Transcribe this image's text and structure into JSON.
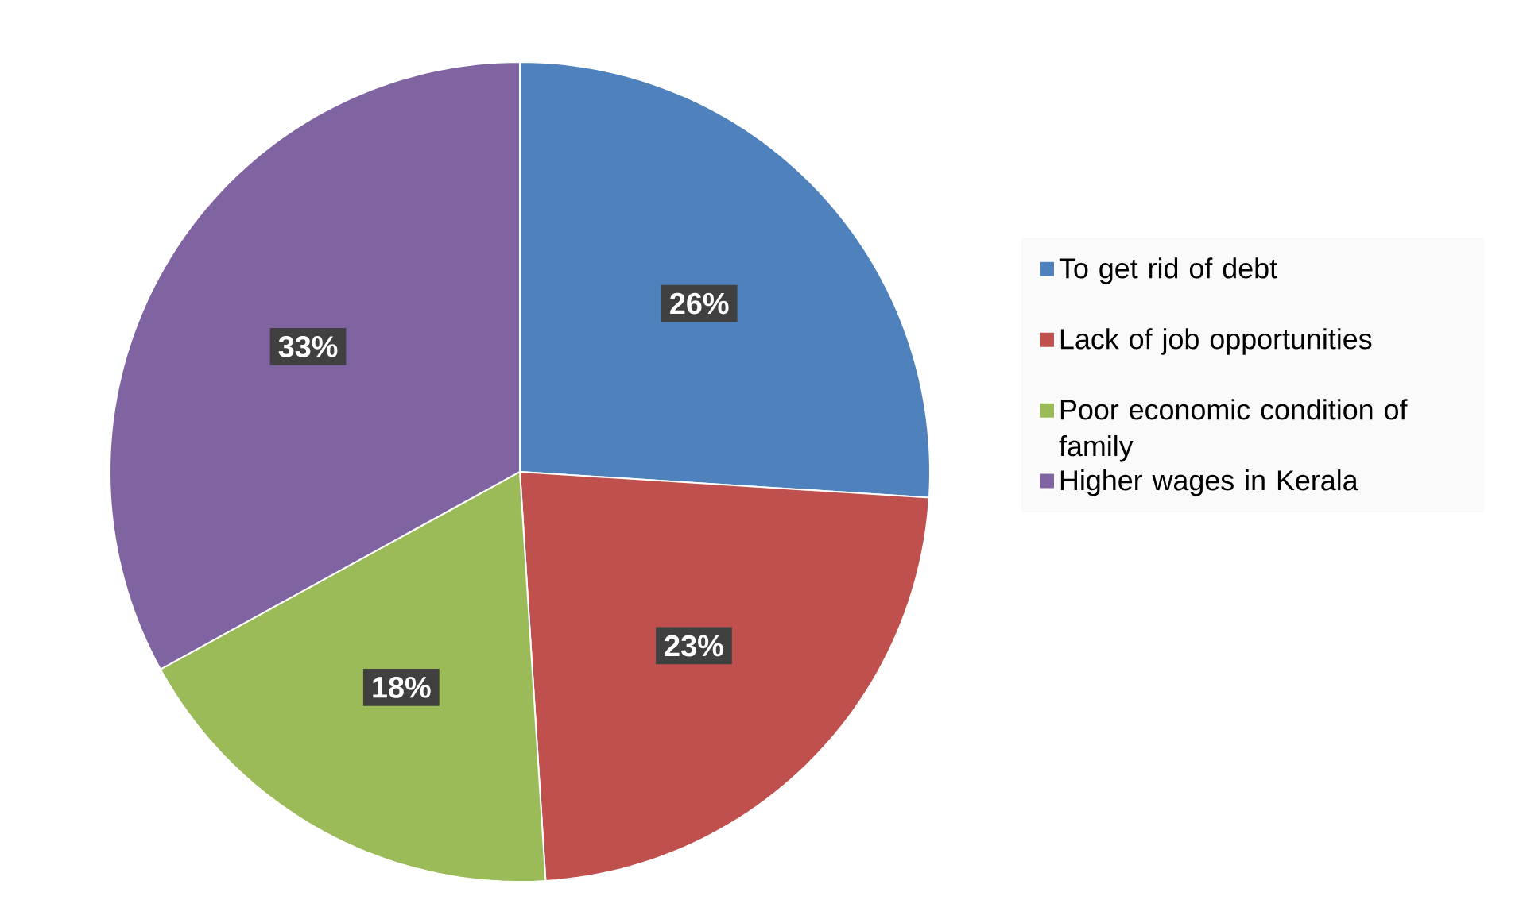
{
  "chart_data": {
    "type": "pie",
    "categories": [
      "To get rid of debt",
      "Lack of job opportunities",
      "Poor economic condition of family",
      "Higher wages in Kerala"
    ],
    "values": [
      26,
      23,
      18,
      33
    ],
    "colors": [
      "#4f81bd",
      "#c0504d",
      "#9bbb59",
      "#8064a2"
    ],
    "value_labels": [
      "26%",
      "23%",
      "18%",
      "33%"
    ],
    "legend": "right"
  }
}
